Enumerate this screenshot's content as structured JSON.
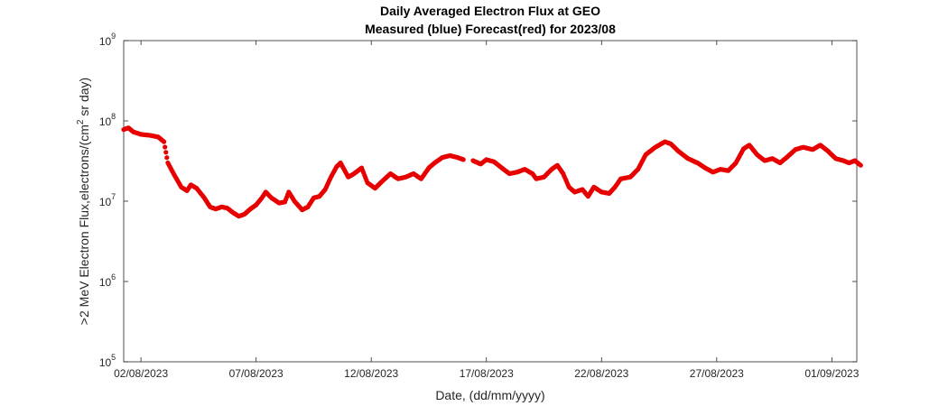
{
  "chart_data": {
    "type": "scatter",
    "title": "Daily Averaged Electron Flux at GEO",
    "subtitle": "Measured (blue) Forecast(red) for 2023/08",
    "xlabel": "Date, (dd/mm/yyyy)",
    "ylabel": {
      "prefix": ">2 MeV Electron Flux,electrons/(cm",
      "sup": "2",
      "suffix": " sr day)"
    },
    "yscale": "log",
    "ylim": [
      100000,
      1000000000
    ],
    "y_ticks": [
      {
        "base": "10",
        "exp": "5",
        "value": 100000
      },
      {
        "base": "10",
        "exp": "6",
        "value": 1000000
      },
      {
        "base": "10",
        "exp": "7",
        "value": 10000000
      },
      {
        "base": "10",
        "exp": "8",
        "value": 100000000
      },
      {
        "base": "10",
        "exp": "9",
        "value": 1000000000
      }
    ],
    "xlim": [
      "2023-08-01 06:00",
      "2023-09-02 02:00"
    ],
    "x_ticks": [
      {
        "label": "02/08/2023",
        "date": "2023-08-02"
      },
      {
        "label": "07/08/2023",
        "date": "2023-08-07"
      },
      {
        "label": "12/08/2023",
        "date": "2023-08-12"
      },
      {
        "label": "17/08/2023",
        "date": "2023-08-17"
      },
      {
        "label": "22/08/2023",
        "date": "2023-08-22"
      },
      {
        "label": "27/08/2023",
        "date": "2023-08-27"
      },
      {
        "label": "01/09/2023",
        "date": "2023-09-01"
      }
    ],
    "grid": false,
    "series": [
      {
        "color": "#e60000",
        "anchors": [
          [
            "2023-08-01 06:00",
            78000000
          ],
          [
            "2023-08-01 11:00",
            82000000
          ],
          [
            "2023-08-01 16:00",
            73000000
          ],
          [
            "2023-08-02 00:00",
            68000000
          ],
          [
            "2023-08-02 10:00",
            66000000
          ],
          [
            "2023-08-02 18:00",
            63000000
          ],
          [
            "2023-08-03 00:00",
            55000000
          ],
          [
            "2023-08-03 04:00",
            30000000
          ],
          [
            "2023-08-03 10:00",
            22000000
          ],
          [
            "2023-08-03 18:00",
            15000000
          ],
          [
            "2023-08-04 00:00",
            13500000
          ],
          [
            "2023-08-04 04:00",
            16000000
          ],
          [
            "2023-08-04 10:00",
            14500000
          ],
          [
            "2023-08-04 18:00",
            11000000
          ],
          [
            "2023-08-05 00:00",
            8500000
          ],
          [
            "2023-08-05 06:00",
            8000000
          ],
          [
            "2023-08-05 12:00",
            8500000
          ],
          [
            "2023-08-05 18:00",
            8200000
          ],
          [
            "2023-08-06 00:00",
            7200000
          ],
          [
            "2023-08-06 06:00",
            6500000
          ],
          [
            "2023-08-06 12:00",
            6900000
          ],
          [
            "2023-08-06 18:00",
            8000000
          ],
          [
            "2023-08-07 00:00",
            9000000
          ],
          [
            "2023-08-07 06:00",
            11000000
          ],
          [
            "2023-08-07 10:00",
            13000000
          ],
          [
            "2023-08-07 16:00",
            11000000
          ],
          [
            "2023-08-08 00:00",
            9500000
          ],
          [
            "2023-08-08 06:00",
            9800000
          ],
          [
            "2023-08-08 10:00",
            13000000
          ],
          [
            "2023-08-08 16:00",
            10000000
          ],
          [
            "2023-08-09 00:00",
            7800000
          ],
          [
            "2023-08-09 06:00",
            8500000
          ],
          [
            "2023-08-09 12:00",
            11000000
          ],
          [
            "2023-08-09 18:00",
            11500000
          ],
          [
            "2023-08-10 00:00",
            14000000
          ],
          [
            "2023-08-10 06:00",
            20000000
          ],
          [
            "2023-08-10 12:00",
            27000000
          ],
          [
            "2023-08-10 16:00",
            30000000
          ],
          [
            "2023-08-11 00:00",
            20000000
          ],
          [
            "2023-08-11 06:00",
            22000000
          ],
          [
            "2023-08-11 14:00",
            26000000
          ],
          [
            "2023-08-11 20:00",
            17000000
          ],
          [
            "2023-08-12 04:00",
            14500000
          ],
          [
            "2023-08-12 12:00",
            18000000
          ],
          [
            "2023-08-12 20:00",
            22000000
          ],
          [
            "2023-08-13 04:00",
            19000000
          ],
          [
            "2023-08-13 12:00",
            20000000
          ],
          [
            "2023-08-13 20:00",
            22000000
          ],
          [
            "2023-08-14 04:00",
            19000000
          ],
          [
            "2023-08-14 12:00",
            26000000
          ],
          [
            "2023-08-14 18:00",
            30000000
          ],
          [
            "2023-08-15 02:00",
            35000000
          ],
          [
            "2023-08-15 10:00",
            37000000
          ],
          [
            "2023-08-15 18:00",
            35000000
          ],
          [
            "2023-08-16 00:00",
            33000000
          ]
        ],
        "anchors_segment_2": [
          [
            "2023-08-16 10:00",
            32000000
          ],
          [
            "2023-08-16 18:00",
            29000000
          ],
          [
            "2023-08-17 00:00",
            33000000
          ],
          [
            "2023-08-17 08:00",
            31000000
          ],
          [
            "2023-08-17 16:00",
            26000000
          ],
          [
            "2023-08-18 00:00",
            22000000
          ],
          [
            "2023-08-18 08:00",
            23000000
          ],
          [
            "2023-08-18 16:00",
            25000000
          ],
          [
            "2023-08-19 00:00",
            22000000
          ],
          [
            "2023-08-19 04:00",
            19000000
          ],
          [
            "2023-08-19 12:00",
            20000000
          ],
          [
            "2023-08-19 20:00",
            25000000
          ],
          [
            "2023-08-20 02:00",
            28000000
          ],
          [
            "2023-08-20 08:00",
            22000000
          ],
          [
            "2023-08-20 14:00",
            15000000
          ],
          [
            "2023-08-20 20:00",
            13000000
          ],
          [
            "2023-08-21 04:00",
            14000000
          ],
          [
            "2023-08-21 10:00",
            11500000
          ],
          [
            "2023-08-21 16:00",
            15000000
          ],
          [
            "2023-08-22 00:00",
            13000000
          ],
          [
            "2023-08-22 08:00",
            12500000
          ],
          [
            "2023-08-22 14:00",
            15000000
          ],
          [
            "2023-08-22 20:00",
            19000000
          ],
          [
            "2023-08-23 06:00",
            20000000
          ],
          [
            "2023-08-23 14:00",
            25000000
          ],
          [
            "2023-08-23 22:00",
            38000000
          ],
          [
            "2023-08-24 08:00",
            47000000
          ],
          [
            "2023-08-24 18:00",
            55000000
          ],
          [
            "2023-08-25 00:00",
            52000000
          ],
          [
            "2023-08-25 08:00",
            42000000
          ],
          [
            "2023-08-25 18:00",
            34000000
          ],
          [
            "2023-08-26 04:00",
            30000000
          ],
          [
            "2023-08-26 12:00",
            26000000
          ],
          [
            "2023-08-26 20:00",
            23000000
          ],
          [
            "2023-08-27 04:00",
            25000000
          ],
          [
            "2023-08-27 12:00",
            24000000
          ],
          [
            "2023-08-27 20:00",
            30000000
          ],
          [
            "2023-08-28 04:00",
            45000000
          ],
          [
            "2023-08-28 10:00",
            50000000
          ],
          [
            "2023-08-28 18:00",
            38000000
          ],
          [
            "2023-08-29 02:00",
            32000000
          ],
          [
            "2023-08-29 10:00",
            34000000
          ],
          [
            "2023-08-29 18:00",
            30000000
          ],
          [
            "2023-08-30 02:00",
            36000000
          ],
          [
            "2023-08-30 10:00",
            44000000
          ],
          [
            "2023-08-30 18:00",
            47000000
          ],
          [
            "2023-08-31 04:00",
            44000000
          ],
          [
            "2023-08-31 12:00",
            50000000
          ],
          [
            "2023-08-31 20:00",
            42000000
          ],
          [
            "2023-09-01 04:00",
            34000000
          ],
          [
            "2023-09-01 12:00",
            32000000
          ],
          [
            "2023-09-01 18:00",
            30000000
          ],
          [
            "2023-09-02 00:00",
            32000000
          ],
          [
            "2023-09-02 06:00",
            28000000
          ]
        ]
      }
    ]
  }
}
